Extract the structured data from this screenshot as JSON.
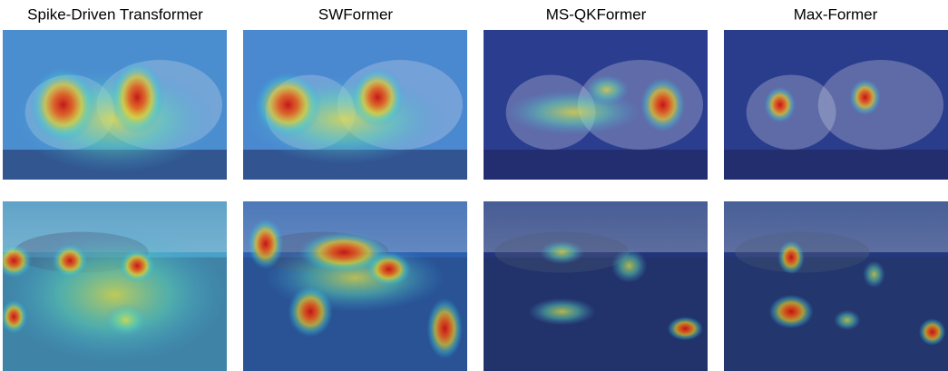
{
  "columns": [
    {
      "title": "Spike-Driven Transformer"
    },
    {
      "title": "SWFormer"
    },
    {
      "title": "MS-QKFormer"
    },
    {
      "title": "Max-Former"
    }
  ]
}
